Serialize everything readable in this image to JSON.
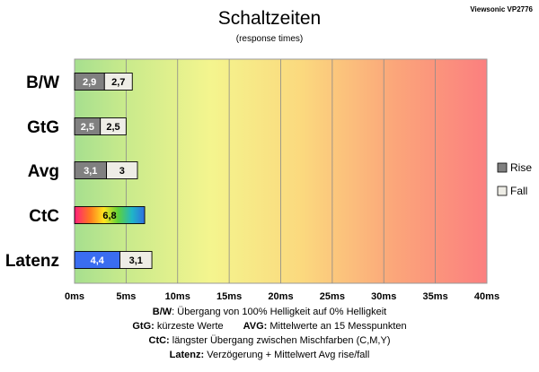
{
  "chart_data": {
    "type": "bar",
    "title": "Schaltzeiten",
    "subtitle": "(response times)",
    "corner_label": "Viewsonic VP2776",
    "categories": [
      "B/W",
      "GtG",
      "Avg",
      "CtC",
      "Latenz"
    ],
    "series": [
      {
        "name": "Rise",
        "values": [
          2.9,
          2.5,
          3.1,
          null,
          null
        ],
        "labels": [
          "2,9",
          "2,5",
          "3,1",
          "",
          ""
        ],
        "color": "#808080"
      },
      {
        "name": "Fall",
        "values": [
          2.7,
          2.5,
          3.0,
          null,
          3.1
        ],
        "labels": [
          "2,7",
          "2,5",
          "3",
          "",
          "3,1"
        ],
        "color": "#eeede6"
      }
    ],
    "special_bars": [
      {
        "category": "CtC",
        "value": 6.8,
        "label": "6,8",
        "fill": "rainbow"
      },
      {
        "category": "Latenz",
        "value": 4.4,
        "label": "4,4",
        "fill": "#3a6df0"
      }
    ],
    "x_ticks": [
      "0ms",
      "5ms",
      "10ms",
      "15ms",
      "20ms",
      "25ms",
      "30ms",
      "35ms",
      "40ms"
    ],
    "xlim": [
      0,
      40
    ],
    "background": "gradient green (fast) to red (slow)",
    "grid": true,
    "legend": "right"
  },
  "footnotes": {
    "bw_key": "B/W",
    "bw_text": ":  Übergang von 100% Helligkeit auf 0% Helligkeit",
    "gtg_key": "GtG:",
    "gtg_text": " kürzeste  Werte",
    "avg_key": "AVG:",
    "avg_text": " Mittelwerte  an 15 Messpunkten",
    "ctc_key": "CtC:",
    "ctc_text": " längster Übergang  zwischen Mischfarben  (C,M,Y)",
    "lat_key": "Latenz:",
    "lat_text": " Verzögerung  + Mittelwert  Avg rise/fall"
  }
}
